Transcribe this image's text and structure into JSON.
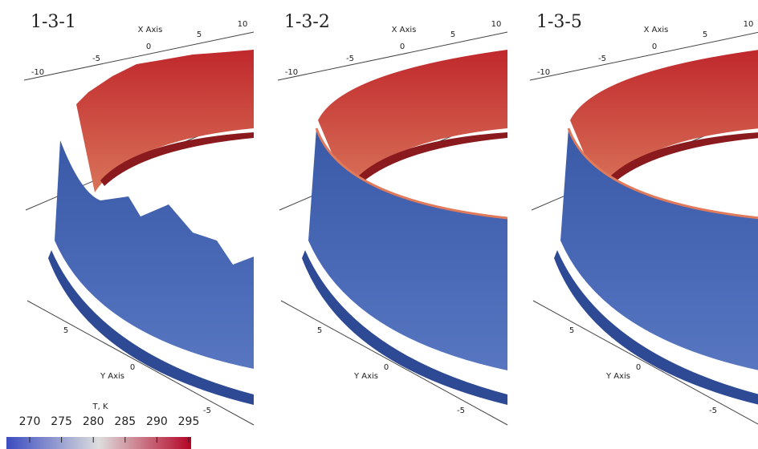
{
  "panels": [
    {
      "label": "1-3-1",
      "x_axis": "X Axis",
      "x_ticks": [
        -10,
        -5,
        0,
        5,
        10
      ],
      "y_axis": "Y Axis",
      "y_ticks": [
        5,
        0,
        -5
      ]
    },
    {
      "label": "1-3-2",
      "x_axis": "X Axis",
      "x_ticks": [
        -10,
        -5,
        0,
        5,
        10
      ],
      "y_axis": "Y Axis",
      "y_ticks": [
        5,
        0,
        -5
      ]
    },
    {
      "label": "1-3-5",
      "x_axis": "X Axis",
      "x_ticks": [
        -10,
        -5,
        0,
        5,
        10
      ],
      "y_axis": "Y Axis",
      "y_ticks": [
        5,
        0,
        -5
      ]
    }
  ],
  "colorbar": {
    "title": "T, K",
    "ticks": [
      270,
      275,
      280,
      285,
      290,
      295
    ]
  }
}
